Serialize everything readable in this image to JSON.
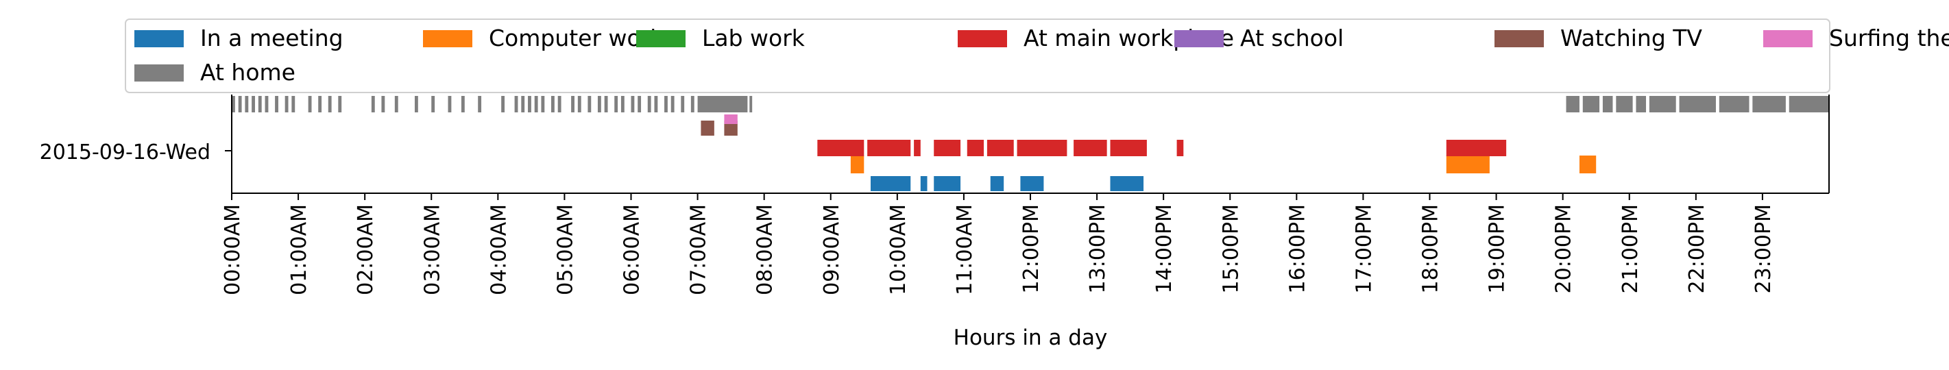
{
  "chart_data": {
    "type": "timeline",
    "title": "",
    "xlabel": "Hours in a day",
    "ylabel": "",
    "xlim": [
      0,
      24
    ],
    "row_label": "2015-09-16-Wed",
    "x_ticks": [
      "00:00AM",
      "01:00AM",
      "02:00AM",
      "03:00AM",
      "04:00AM",
      "05:00AM",
      "06:00AM",
      "07:00AM",
      "08:00AM",
      "09:00AM",
      "10:00AM",
      "11:00AM",
      "12:00PM",
      "13:00PM",
      "14:00PM",
      "15:00PM",
      "16:00PM",
      "17:00PM",
      "18:00PM",
      "19:00PM",
      "20:00PM",
      "21:00PM",
      "22:00PM",
      "23:00PM"
    ],
    "legend_position": "top",
    "series": [
      {
        "name": "In a meeting",
        "color": "#1f77b4",
        "lane": 0,
        "intervals": [
          [
            9.6,
            10.2
          ],
          [
            10.35,
            10.45
          ],
          [
            10.55,
            10.95
          ],
          [
            11.4,
            11.6
          ],
          [
            11.85,
            12.2
          ],
          [
            13.2,
            13.7
          ]
        ]
      },
      {
        "name": "Computer work",
        "color": "#ff7f0e",
        "lane": 1,
        "intervals": [
          [
            9.3,
            9.5
          ],
          [
            18.25,
            18.9
          ],
          [
            20.25,
            20.5
          ]
        ]
      },
      {
        "name": "Lab work",
        "color": "#2ca02c",
        "lane": 2,
        "intervals": []
      },
      {
        "name": "At main workplace",
        "color": "#d62728",
        "lane": 2,
        "intervals": [
          [
            8.8,
            9.5
          ],
          [
            9.55,
            10.2
          ],
          [
            10.25,
            10.35
          ],
          [
            10.55,
            10.95
          ],
          [
            11.05,
            11.3
          ],
          [
            11.35,
            11.75
          ],
          [
            11.8,
            12.55
          ],
          [
            12.65,
            13.15
          ],
          [
            13.2,
            13.75
          ],
          [
            14.2,
            14.3
          ],
          [
            18.25,
            19.15
          ]
        ]
      },
      {
        "name": "At school",
        "color": "#9467bd",
        "lane": 4,
        "intervals": []
      },
      {
        "name": "Watching TV",
        "color": "#8c564b",
        "lane": 3,
        "intervals": [
          [
            7.05,
            7.25
          ],
          [
            7.4,
            7.6
          ]
        ]
      },
      {
        "name": "Surfing the internet",
        "color": "#e377c2",
        "lane": 4,
        "intervals": [
          [
            7.4,
            7.6
          ]
        ]
      },
      {
        "name": "At home",
        "color": "#7f7f7f",
        "lane": 5,
        "intervals": [
          [
            0.0,
            0.05
          ],
          [
            0.1,
            0.15
          ],
          [
            0.2,
            0.25
          ],
          [
            0.3,
            0.35
          ],
          [
            0.4,
            0.45
          ],
          [
            0.5,
            0.55
          ],
          [
            0.65,
            0.7
          ],
          [
            0.8,
            0.85
          ],
          [
            0.9,
            0.95
          ],
          [
            1.15,
            1.2
          ],
          [
            1.3,
            1.35
          ],
          [
            1.45,
            1.5
          ],
          [
            1.6,
            1.65
          ],
          [
            2.1,
            2.15
          ],
          [
            2.25,
            2.3
          ],
          [
            2.45,
            2.5
          ],
          [
            2.75,
            2.8
          ],
          [
            3.0,
            3.05
          ],
          [
            3.25,
            3.3
          ],
          [
            3.45,
            3.5
          ],
          [
            3.7,
            3.75
          ],
          [
            4.05,
            4.1
          ],
          [
            4.25,
            4.3
          ],
          [
            4.35,
            4.4
          ],
          [
            4.45,
            4.5
          ],
          [
            4.55,
            4.6
          ],
          [
            4.65,
            4.7
          ],
          [
            4.8,
            4.85
          ],
          [
            4.9,
            4.95
          ],
          [
            5.1,
            5.15
          ],
          [
            5.2,
            5.25
          ],
          [
            5.35,
            5.4
          ],
          [
            5.5,
            5.55
          ],
          [
            5.6,
            5.65
          ],
          [
            5.75,
            5.8
          ],
          [
            5.85,
            5.9
          ],
          [
            6.0,
            6.05
          ],
          [
            6.1,
            6.15
          ],
          [
            6.25,
            6.3
          ],
          [
            6.35,
            6.4
          ],
          [
            6.5,
            6.55
          ],
          [
            6.6,
            6.65
          ],
          [
            6.75,
            6.8
          ],
          [
            6.9,
            6.95
          ],
          [
            7.0,
            7.75
          ],
          [
            7.78,
            7.82
          ],
          [
            20.05,
            20.25
          ],
          [
            20.3,
            20.55
          ],
          [
            20.6,
            20.75
          ],
          [
            20.8,
            21.05
          ],
          [
            21.1,
            21.25
          ],
          [
            21.3,
            21.7
          ],
          [
            21.75,
            22.3
          ],
          [
            22.35,
            22.8
          ],
          [
            22.85,
            23.35
          ],
          [
            23.4,
            24.0
          ]
        ]
      }
    ]
  }
}
